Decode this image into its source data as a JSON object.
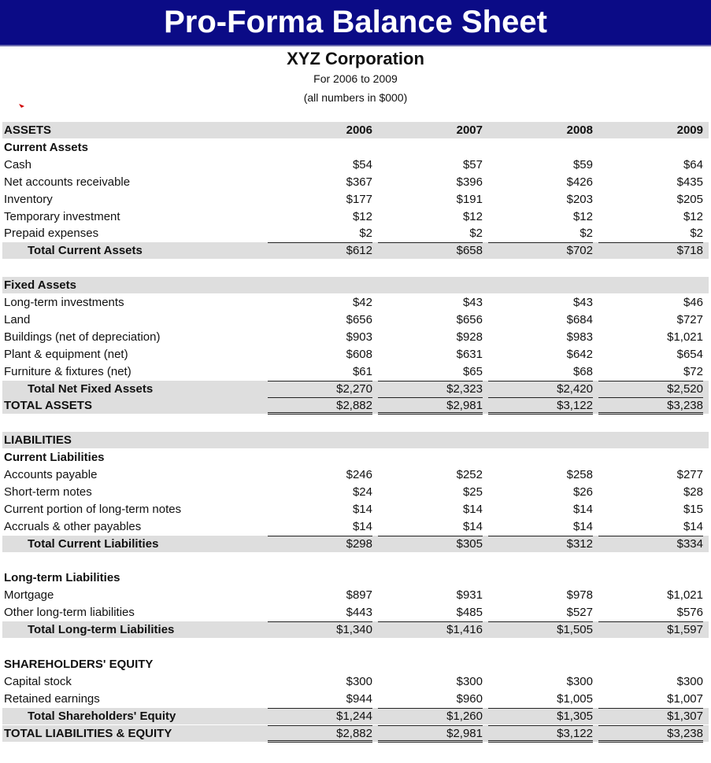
{
  "header": {
    "title": "Pro-Forma Balance Sheet",
    "company": "XYZ Corporation",
    "period": "For 2006 to 2009",
    "units": "(all numbers in $000)"
  },
  "table": {
    "groups": [
      [
        [
          "ASSETS",
          "2006",
          "2007",
          "2008",
          "2009"
        ],
        [
          "Current Assets"
        ],
        [
          "Cash",
          "$54",
          "$57",
          "$59",
          "$64"
        ],
        [
          "Net accounts receivable",
          "$367",
          "$396",
          "$426",
          "$435"
        ],
        [
          "Inventory",
          "$177",
          "$191",
          "$203",
          "$205"
        ],
        [
          "Temporary investment",
          "$12",
          "$12",
          "$12",
          "$12"
        ],
        [
          "Prepaid expenses",
          "$2",
          "$2",
          "$2",
          "$2"
        ],
        [
          "Total Current Assets",
          "$612",
          "$658",
          "$702",
          "$718"
        ]
      ],
      [
        [
          "Fixed Assets"
        ],
        [
          "Long-term investments",
          "$42",
          "$43",
          "$43",
          "$46"
        ],
        [
          "Land",
          "$656",
          "$656",
          "$684",
          "$727"
        ],
        [
          "Buildings (net of depreciation)",
          "$903",
          "$928",
          "$983",
          "$1,021"
        ],
        [
          "Plant & equipment (net)",
          "$608",
          "$631",
          "$642",
          "$654"
        ],
        [
          "Furniture & fixtures (net)",
          "$61",
          "$65",
          "$68",
          "$72"
        ],
        [
          "Total Net Fixed Assets",
          "$2,270",
          "$2,323",
          "$2,420",
          "$2,520"
        ],
        [
          "TOTAL ASSETS",
          "$2,882",
          "$2,981",
          "$3,122",
          "$3,238"
        ]
      ],
      [
        [
          "LIABILITIES"
        ],
        [
          "Current Liabilities"
        ],
        [
          "Accounts payable",
          "$246",
          "$252",
          "$258",
          "$277"
        ],
        [
          "Short-term notes",
          "$24",
          "$25",
          "$26",
          "$28"
        ],
        [
          "Current portion of long-term notes",
          "$14",
          "$14",
          "$14",
          "$15"
        ],
        [
          "Accruals & other payables",
          "$14",
          "$14",
          "$14",
          "$14"
        ],
        [
          "Total Current Liabilities",
          "$298",
          "$305",
          "$312",
          "$334"
        ]
      ],
      [
        [
          "Long-term Liabilities"
        ],
        [
          "Mortgage",
          "$897",
          "$931",
          "$978",
          "$1,021"
        ],
        [
          "Other long-term liabilities",
          "$443",
          "$485",
          "$527",
          "$576"
        ],
        [
          "Total Long-term Liabilities",
          "$1,340",
          "$1,416",
          "$1,505",
          "$1,597"
        ]
      ],
      [
        [
          "SHAREHOLDERS' EQUITY"
        ],
        [
          "Capital stock",
          "$300",
          "$300",
          "$300",
          "$300"
        ],
        [
          "Retained earnings",
          "$944",
          "$960",
          "$1,005",
          "$1,007"
        ],
        [
          "Total Shareholders' Equity",
          "$1,244",
          "$1,260",
          "$1,305",
          "$1,307"
        ],
        [
          "TOTAL LIABILITIES & EQUITY",
          "$2,882",
          "$2,981",
          "$3,122",
          "$3,238"
        ]
      ]
    ]
  }
}
